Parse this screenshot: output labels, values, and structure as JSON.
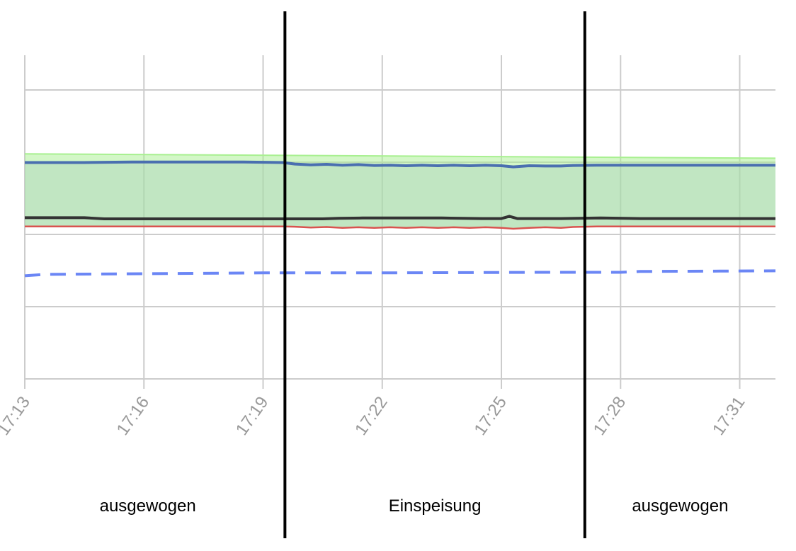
{
  "chart_data": {
    "type": "line",
    "x_ticks": [
      "17:13",
      "17:16",
      "17:19",
      "17:22",
      "17:25",
      "17:28",
      "17:31"
    ],
    "x_range_minutes": [
      13,
      31.9
    ],
    "grid": true,
    "y_gridlines": 5,
    "series": [
      {
        "color": "#a8f090",
        "points": [
          [
            13,
            0.78
          ],
          [
            31.9,
            0.765
          ]
        ]
      },
      {
        "color": "#4a6fb0",
        "points": [
          [
            13,
            0.75
          ],
          [
            14.5,
            0.75
          ],
          [
            15.7,
            0.752
          ],
          [
            17,
            0.752
          ],
          [
            18.5,
            0.752
          ],
          [
            19.5,
            0.75
          ],
          [
            19.8,
            0.745
          ],
          [
            20.2,
            0.742
          ],
          [
            20.6,
            0.744
          ],
          [
            21,
            0.741
          ],
          [
            21.4,
            0.743
          ],
          [
            21.8,
            0.74
          ],
          [
            22.2,
            0.741
          ],
          [
            22.6,
            0.739
          ],
          [
            23,
            0.741
          ],
          [
            23.4,
            0.739
          ],
          [
            23.8,
            0.741
          ],
          [
            24.2,
            0.739
          ],
          [
            24.6,
            0.741
          ],
          [
            25,
            0.739
          ],
          [
            25.3,
            0.735
          ],
          [
            25.7,
            0.739
          ],
          [
            26.1,
            0.738
          ],
          [
            26.5,
            0.738
          ],
          [
            26.8,
            0.74
          ],
          [
            27.4,
            0.741
          ],
          [
            28.5,
            0.741
          ],
          [
            29.5,
            0.741
          ],
          [
            30.5,
            0.741
          ],
          [
            31.9,
            0.741
          ]
        ]
      },
      {
        "color": "#333333",
        "points": [
          [
            13,
            0.56
          ],
          [
            14.5,
            0.56
          ],
          [
            15,
            0.556
          ],
          [
            17,
            0.556
          ],
          [
            18.5,
            0.556
          ],
          [
            19.5,
            0.556
          ],
          [
            20.5,
            0.556
          ],
          [
            20.9,
            0.558
          ],
          [
            21.5,
            0.559
          ],
          [
            22.5,
            0.559
          ],
          [
            23.5,
            0.559
          ],
          [
            24.5,
            0.557
          ],
          [
            25,
            0.557
          ],
          [
            25.2,
            0.565
          ],
          [
            25.4,
            0.557
          ],
          [
            26.5,
            0.557
          ],
          [
            27.5,
            0.559
          ],
          [
            28.5,
            0.557
          ],
          [
            29.5,
            0.557
          ],
          [
            30.5,
            0.557
          ],
          [
            31.9,
            0.557
          ]
        ]
      },
      {
        "color": "#d9534f",
        "points": [
          [
            13,
            0.53
          ],
          [
            19.5,
            0.53
          ],
          [
            19.8,
            0.529
          ],
          [
            20.2,
            0.526
          ],
          [
            20.6,
            0.528
          ],
          [
            21,
            0.525
          ],
          [
            21.4,
            0.527
          ],
          [
            21.8,
            0.525
          ],
          [
            22.2,
            0.527
          ],
          [
            22.6,
            0.525
          ],
          [
            23,
            0.527
          ],
          [
            23.4,
            0.525
          ],
          [
            23.8,
            0.527
          ],
          [
            24.2,
            0.525
          ],
          [
            24.6,
            0.527
          ],
          [
            25,
            0.525
          ],
          [
            25.3,
            0.522
          ],
          [
            25.7,
            0.525
          ],
          [
            26.1,
            0.527
          ],
          [
            26.5,
            0.525
          ],
          [
            26.8,
            0.528
          ],
          [
            27.4,
            0.53
          ],
          [
            31.9,
            0.53
          ]
        ]
      },
      {
        "color": "#6b86f5",
        "style": "dashed",
        "points": [
          [
            13,
            0.36
          ],
          [
            13.5,
            0.365
          ],
          [
            19,
            0.37
          ],
          [
            22,
            0.37
          ],
          [
            26,
            0.372
          ],
          [
            28,
            0.372
          ],
          [
            28.5,
            0.375
          ],
          [
            31.9,
            0.377
          ]
        ]
      }
    ],
    "band": {
      "color": "#a6dca8",
      "from_series": 1,
      "to_series": 3
    },
    "phases": [
      {
        "label": "ausgewogen",
        "from": 13,
        "to": 19.55
      },
      {
        "label": "Einspeisung",
        "from": 19.55,
        "to": 27.1
      },
      {
        "label": "ausgewogen",
        "from": 27.1,
        "to": 31.9
      }
    ]
  }
}
